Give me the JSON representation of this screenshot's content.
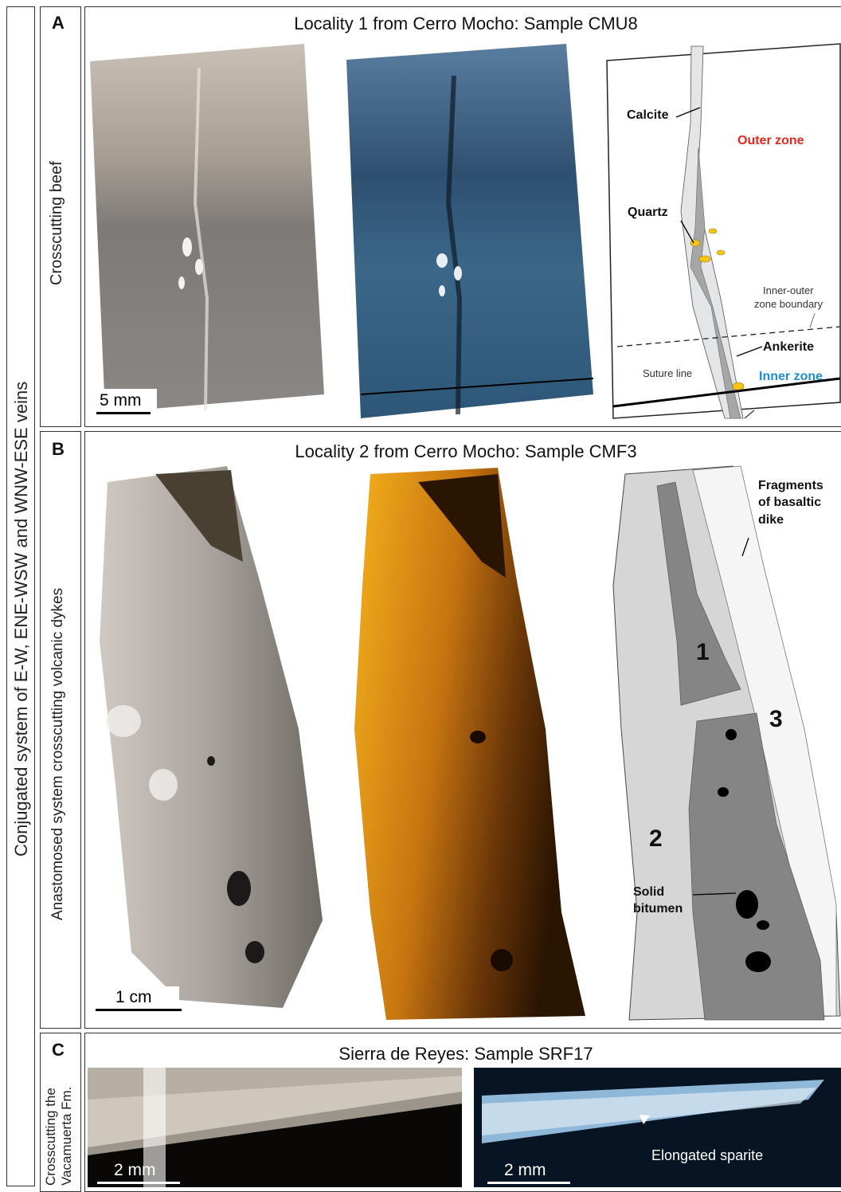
{
  "vertical_labels": {
    "outer": "Conjugated system of E-W, ENE-WSW and WNW-ESE veins",
    "a": "Crosscutting beef",
    "b": "Anastomosed system crosscutting volcanic dykes",
    "c_line1": "Crosscutting the",
    "c_line2": "Vacamuerta Fm."
  },
  "panel_a": {
    "letter": "A",
    "title": "Locality 1 from Cerro Mocho: Sample CMU8",
    "scale": "5 mm",
    "sketch": {
      "calcite": "Calcite",
      "outer_zone": "Outer zone",
      "quartz": "Quartz",
      "boundary_line1": "Inner-outer",
      "boundary_line2": "zone boundary",
      "ankerite": "Ankerite",
      "suture": "Suture line",
      "inner_zone": "Inner zone",
      "colors": {
        "outer_zone": "#e8241c",
        "inner_zone": "#1d8fd0",
        "quartz": "#f5c518"
      }
    }
  },
  "panel_b": {
    "letter": "B",
    "title": "Locality 2 from Cerro Mocho: Sample CMF3",
    "scale": "1 cm",
    "sketch": {
      "fragments_line1": "Fragments",
      "fragments_line2": "of basaltic",
      "fragments_line3": "dike",
      "n1": "1",
      "n2": "2",
      "n3": "3",
      "bitumen_line1": "Solid",
      "bitumen_line2": "bitumen"
    }
  },
  "panel_c": {
    "letter": "C",
    "title": "Sierra de Reyes: Sample SRF17",
    "scale_left": "2 mm",
    "scale_right": "2 mm",
    "sparite": "Elongated sparite"
  }
}
